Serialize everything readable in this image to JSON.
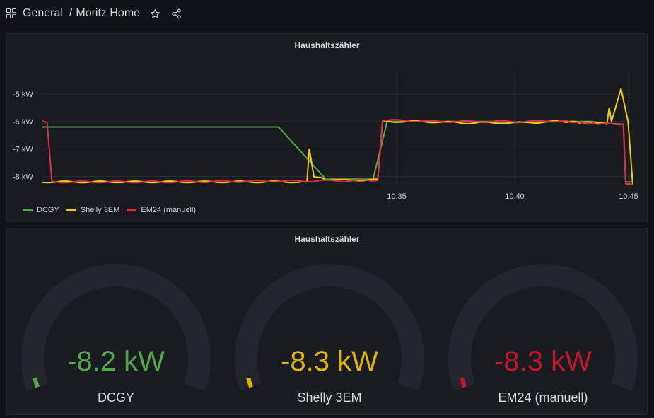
{
  "breadcrumb": {
    "folder": "General",
    "separator": "/",
    "dashboard": "Moritz Home"
  },
  "icons": {
    "dashboards": "dashboards-grid-icon",
    "star": "star-icon",
    "share": "share-icon"
  },
  "colors": {
    "background": "#111217",
    "panel": "#181b1f",
    "dcgy": "#56a64b",
    "shelly": "#f2cc0c",
    "em24": "#e02f44"
  },
  "timeseries_panel": {
    "title": "Haushaltszähler",
    "legend": [
      {
        "name": "DCGY",
        "color": "#56a64b"
      },
      {
        "name": "Shelly 3EM",
        "color": "#f2cc0c"
      },
      {
        "name": "EM24 (manuell)",
        "color": "#e02f44"
      }
    ]
  },
  "gauge_panel": {
    "title": "Haushaltszähler",
    "gauges": [
      {
        "value": "-8.2 kW",
        "label": "DCGY",
        "color": "#56a64b",
        "fraction": 0.03
      },
      {
        "value": "-8.3 kW",
        "label": "Shelly 3EM",
        "color": "#e0b400",
        "fraction": 0.03
      },
      {
        "value": "-8.3 kW",
        "label": "EM24 (manuell)",
        "color": "#c4162a",
        "fraction": 0.03
      }
    ]
  },
  "chart_data": {
    "type": "line",
    "title": "Haushaltszähler",
    "xlabel": "",
    "ylabel": "",
    "x_ticks": [
      "10:35",
      "10:40",
      "10:45"
    ],
    "y_ticks": [
      "-5 kW",
      "-6 kW",
      "-7 kW",
      "-8 kW"
    ],
    "y_tick_values": [
      -5,
      -6,
      -7,
      -8
    ],
    "x_range_minutes": [
      10.2,
      10.45
    ],
    "ylim": [
      -8.35,
      -4.1
    ],
    "grid": true,
    "legend_position": "bottom-left",
    "series": [
      {
        "name": "DCGY",
        "color": "#56a64b",
        "points": [
          [
            10.2,
            -6.2
          ],
          [
            10.3,
            -6.2
          ],
          [
            10.32,
            -8.1
          ],
          [
            10.34,
            -8.1
          ],
          [
            10.346,
            -6.0
          ],
          [
            10.39,
            -6.0
          ],
          [
            10.395,
            -6.05
          ],
          [
            10.42,
            -6.0
          ],
          [
            10.433,
            -6.0
          ],
          [
            10.436,
            -6.05
          ],
          [
            10.446,
            -6.1
          ],
          [
            10.447,
            -8.2
          ],
          [
            10.45,
            -8.2
          ]
        ]
      },
      {
        "name": "Shelly 3EM",
        "color": "#f2cc0c",
        "points": [
          [
            10.2,
            -8.2
          ],
          [
            10.312,
            -8.2
          ],
          [
            10.313,
            -7.0
          ],
          [
            10.315,
            -8.0
          ],
          [
            10.32,
            -8.1
          ],
          [
            10.33,
            -8.15
          ],
          [
            10.342,
            -8.1
          ],
          [
            10.344,
            -6.0
          ],
          [
            10.36,
            -6.0
          ],
          [
            10.38,
            -6.05
          ],
          [
            10.4,
            -6.05
          ],
          [
            10.42,
            -6.0
          ],
          [
            10.435,
            -6.05
          ],
          [
            10.439,
            -6.1
          ],
          [
            10.44,
            -5.5
          ],
          [
            10.441,
            -6.0
          ],
          [
            10.443,
            -5.4
          ],
          [
            10.445,
            -4.8
          ],
          [
            10.448,
            -6.0
          ],
          [
            10.45,
            -8.3
          ]
        ]
      },
      {
        "name": "EM24 (manuell)",
        "color": "#e02f44",
        "points": [
          [
            10.2,
            -6.0
          ],
          [
            10.202,
            -6.05
          ],
          [
            10.204,
            -8.2
          ],
          [
            10.25,
            -8.2
          ],
          [
            10.342,
            -8.15
          ],
          [
            10.344,
            -5.95
          ],
          [
            10.37,
            -6.0
          ],
          [
            10.4,
            -6.0
          ],
          [
            10.42,
            -5.98
          ],
          [
            10.435,
            -6.1
          ],
          [
            10.446,
            -6.1
          ],
          [
            10.447,
            -8.3
          ],
          [
            10.45,
            -8.3
          ]
        ]
      }
    ]
  }
}
